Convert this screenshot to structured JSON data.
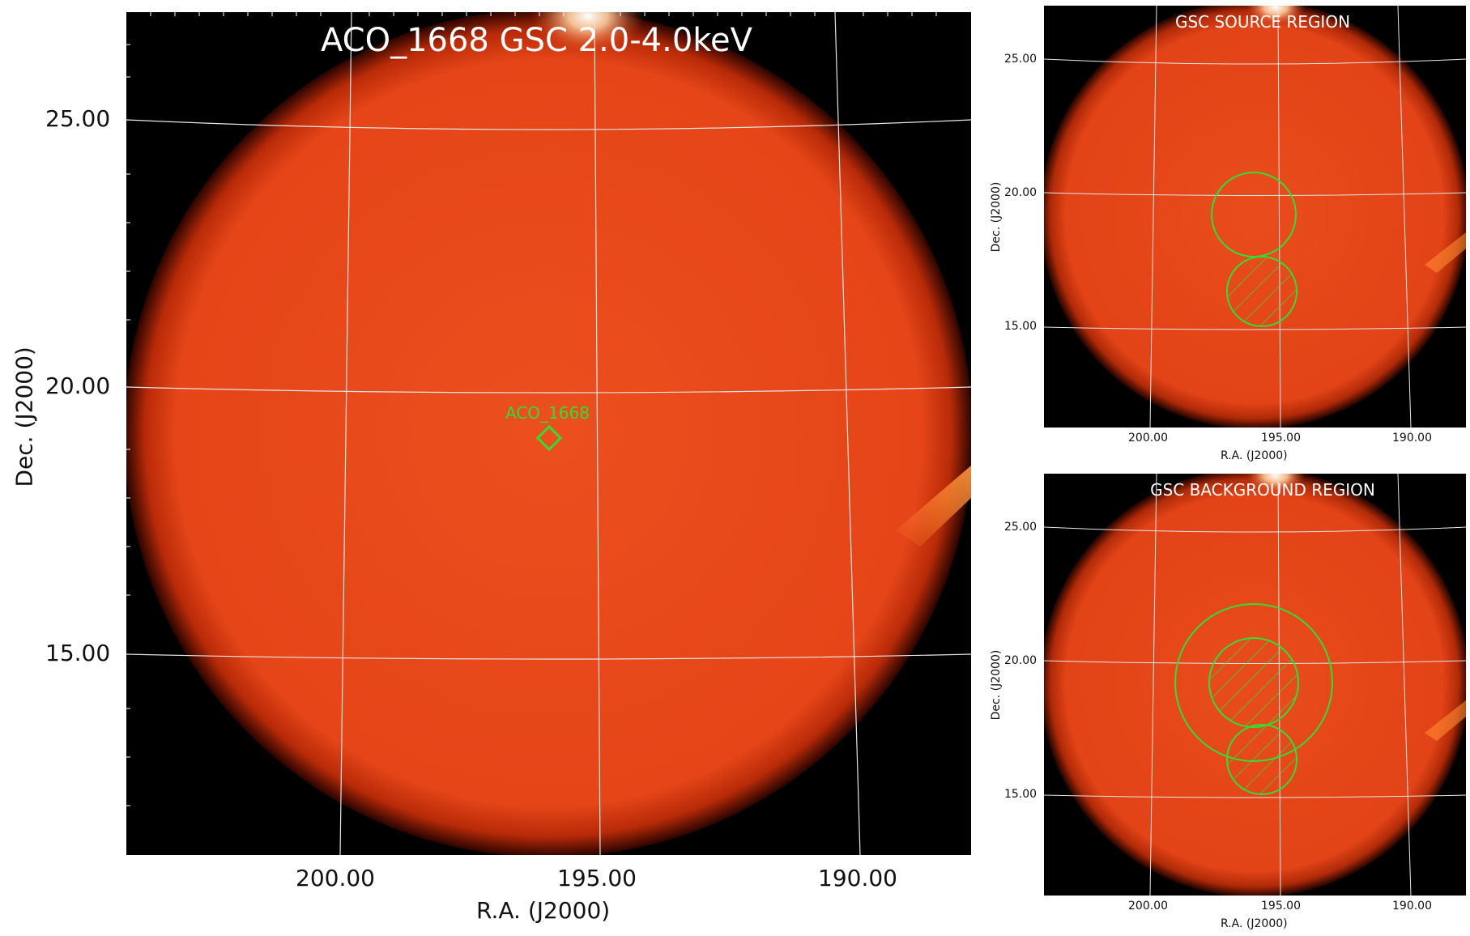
{
  "main_panel": {
    "title": "ACO_1668 GSC 2.0-4.0keV",
    "source_label": "ACO_1668",
    "x_axis_label": "R.A. (J2000)",
    "y_axis_label": "Dec. (J2000)",
    "x_ticks": [
      "200.00",
      "195.00",
      "190.00"
    ],
    "y_ticks": [
      "25.00",
      "20.00",
      "15.00"
    ]
  },
  "source_panel": {
    "title": "GSC SOURCE REGION",
    "x_axis_label": "R.A. (J2000)",
    "y_axis_label": "Dec. (J2000)",
    "x_ticks": [
      "200.00",
      "195.00",
      "190.00"
    ],
    "y_ticks": [
      "25.00",
      "20.00",
      "15.00"
    ]
  },
  "background_panel": {
    "title": "GSC BACKGROUND REGION",
    "x_axis_label": "R.A. (J2000)",
    "y_axis_label": "Dec. (J2000)",
    "x_ticks": [
      "200.00",
      "195.00",
      "190.00"
    ],
    "y_ticks": [
      "25.00",
      "20.00",
      "15.00"
    ]
  },
  "colors": {
    "disk": "#e8481a",
    "disk_edge": "#7a0c00",
    "grid": "#e6e6e6",
    "region": "#33dd33",
    "background": "#000000"
  }
}
